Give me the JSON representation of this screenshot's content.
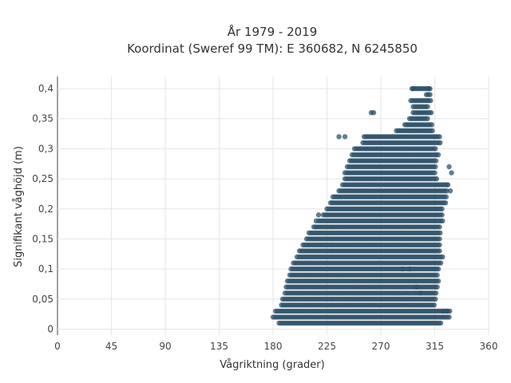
{
  "chart_data": {
    "type": "scatter",
    "title_line1": "År 1979 - 2019",
    "title_line2": "Koordinat (Sweref 99 TM): E 360682, N 6245850",
    "xlabel": "Vågriktning (grader)",
    "ylabel": "Signifikant våghöjd (m)",
    "xlim": [
      0,
      360
    ],
    "ylim": [
      -0.01,
      0.42
    ],
    "grid": true,
    "marker_color": "#2f5168",
    "x_ticks": [
      0,
      45,
      90,
      135,
      180,
      225,
      270,
      315,
      360
    ],
    "x_tick_labels": [
      "0",
      "45",
      "90",
      "135",
      "180",
      "225",
      "270",
      "315",
      "360"
    ],
    "y_ticks": [
      0,
      0.05,
      0.1,
      0.15,
      0.2,
      0.25,
      0.3,
      0.35,
      0.4
    ],
    "y_tick_labels": [
      "0",
      "0,05",
      "0,1",
      "0,15",
      "0,2",
      "0,25",
      "0,3",
      "0,35",
      "0,4"
    ],
    "point_rows": [
      {
        "y": 0.01,
        "x_min": 185,
        "x_max": 320
      },
      {
        "y": 0.02,
        "x_min": 180,
        "x_max": 328
      },
      {
        "y": 0.03,
        "x_min": 182,
        "x_max": 328
      },
      {
        "y": 0.04,
        "x_min": 187,
        "x_max": 315
      },
      {
        "y": 0.05,
        "x_min": 188,
        "x_max": 316
      },
      {
        "y": 0.06,
        "x_min": 190,
        "x_max": 316
      },
      {
        "y": 0.07,
        "x_min": 191,
        "x_max": 318
      },
      {
        "y": 0.08,
        "x_min": 192,
        "x_max": 318
      },
      {
        "y": 0.09,
        "x_min": 194,
        "x_max": 318
      },
      {
        "y": 0.1,
        "x_min": 195,
        "x_max": 318
      },
      {
        "y": 0.11,
        "x_min": 197,
        "x_max": 320
      },
      {
        "y": 0.12,
        "x_min": 200,
        "x_max": 322
      },
      {
        "y": 0.13,
        "x_min": 202,
        "x_max": 320
      },
      {
        "y": 0.14,
        "x_min": 205,
        "x_max": 320
      },
      {
        "y": 0.15,
        "x_min": 208,
        "x_max": 320
      },
      {
        "y": 0.16,
        "x_min": 210,
        "x_max": 320
      },
      {
        "y": 0.17,
        "x_min": 214,
        "x_max": 320
      },
      {
        "y": 0.18,
        "x_min": 218,
        "x_max": 322
      },
      {
        "y": 0.19,
        "x_min": 222,
        "x_max": 322
      },
      {
        "y": 0.2,
        "x_min": 225,
        "x_max": 322
      },
      {
        "y": 0.21,
        "x_min": 228,
        "x_max": 325
      },
      {
        "y": 0.22,
        "x_min": 230,
        "x_max": 325
      },
      {
        "y": 0.23,
        "x_min": 235,
        "x_max": 326
      },
      {
        "y": 0.24,
        "x_min": 238,
        "x_max": 325
      },
      {
        "y": 0.25,
        "x_min": 240,
        "x_max": 317
      },
      {
        "y": 0.26,
        "x_min": 240,
        "x_max": 316
      },
      {
        "y": 0.27,
        "x_min": 242,
        "x_max": 316
      },
      {
        "y": 0.28,
        "x_min": 244,
        "x_max": 317
      },
      {
        "y": 0.29,
        "x_min": 246,
        "x_max": 318
      },
      {
        "y": 0.3,
        "x_min": 248,
        "x_max": 316
      },
      {
        "y": 0.31,
        "x_min": 255,
        "x_max": 320
      },
      {
        "y": 0.32,
        "x_min": 256,
        "x_max": 320
      },
      {
        "y": 0.33,
        "x_min": 283,
        "x_max": 314
      },
      {
        "y": 0.34,
        "x_min": 290,
        "x_max": 313
      },
      {
        "y": 0.35,
        "x_min": 294,
        "x_max": 310
      },
      {
        "y": 0.36,
        "x_min": 297,
        "x_max": 313
      },
      {
        "y": 0.37,
        "x_min": 297,
        "x_max": 310
      },
      {
        "y": 0.38,
        "x_min": 295,
        "x_max": 312
      },
      {
        "y": 0.39,
        "x_min": 308,
        "x_max": 312
      },
      {
        "y": 0.4,
        "x_min": 296,
        "x_max": 311
      }
    ],
    "outliers": [
      {
        "x": 235,
        "y": 0.32
      },
      {
        "x": 240,
        "y": 0.32
      },
      {
        "x": 262,
        "y": 0.36
      },
      {
        "x": 264,
        "y": 0.36
      },
      {
        "x": 297,
        "y": 0.4
      },
      {
        "x": 310,
        "y": 0.4
      },
      {
        "x": 329,
        "y": 0.26
      },
      {
        "x": 327,
        "y": 0.27
      },
      {
        "x": 326,
        "y": 0.24
      },
      {
        "x": 328,
        "y": 0.23
      },
      {
        "x": 216,
        "y": 0.18
      },
      {
        "x": 218,
        "y": 0.19
      },
      {
        "x": 322,
        "y": 0.03
      },
      {
        "x": 325,
        "y": 0.03
      },
      {
        "x": 288,
        "y": 0.1
      },
      {
        "x": 294,
        "y": 0.1
      },
      {
        "x": 300,
        "y": 0.07
      },
      {
        "x": 303,
        "y": 0.06
      }
    ]
  }
}
